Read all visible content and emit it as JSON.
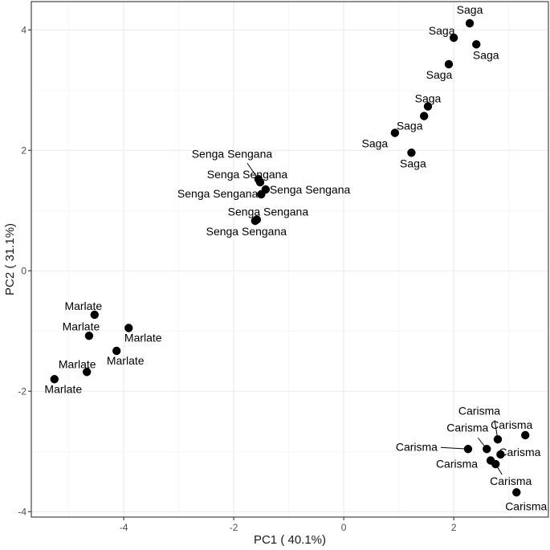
{
  "chart_data": {
    "type": "scatter",
    "title": "",
    "xlabel": "PC1 ( 40.1%)",
    "ylabel": "PC2 ( 31.1%)",
    "xlim": [
      -5.68,
      3.72
    ],
    "ylim": [
      -4.09,
      4.47
    ],
    "x_ticks": [
      -4,
      -2,
      0,
      2
    ],
    "y_ticks": [
      -4,
      -2,
      0,
      2,
      4
    ],
    "x_tick_labels": [
      "-4",
      "-2",
      "0",
      "2"
    ],
    "y_tick_labels": [
      "-4",
      "-2",
      "0",
      "2",
      "4"
    ],
    "grid": true,
    "legend": "none",
    "point_color": "#000000",
    "points": [
      {
        "label": "Saga",
        "x": 2.29,
        "y": 4.11
      },
      {
        "label": "Saga",
        "x": 2.0,
        "y": 3.87
      },
      {
        "label": "Saga",
        "x": 2.41,
        "y": 3.76
      },
      {
        "label": "Saga",
        "x": 1.91,
        "y": 3.43
      },
      {
        "label": "Saga",
        "x": 1.53,
        "y": 2.73
      },
      {
        "label": "Saga",
        "x": 1.46,
        "y": 2.57
      },
      {
        "label": "Saga",
        "x": 0.93,
        "y": 2.29
      },
      {
        "label": "Saga",
        "x": 1.23,
        "y": 1.96
      },
      {
        "label": "Senga Sengana",
        "x": -1.55,
        "y": 1.52
      },
      {
        "label": "Senga Sengana",
        "x": -1.52,
        "y": 1.47
      },
      {
        "label": "Senga Sengana",
        "x": -1.42,
        "y": 1.35
      },
      {
        "label": "Senga Sengana",
        "x": -1.5,
        "y": 1.27
      },
      {
        "label": "Senga Sengana",
        "x": -1.58,
        "y": 0.85
      },
      {
        "label": "Senga Sengana",
        "x": -1.61,
        "y": 0.83
      },
      {
        "label": "Marlate",
        "x": -4.53,
        "y": -0.73
      },
      {
        "label": "Marlate",
        "x": -4.63,
        "y": -1.08
      },
      {
        "label": "Marlate",
        "x": -3.91,
        "y": -0.95
      },
      {
        "label": "Marlate",
        "x": -4.13,
        "y": -1.33
      },
      {
        "label": "Marlate",
        "x": -4.67,
        "y": -1.68
      },
      {
        "label": "Marlate",
        "x": -5.26,
        "y": -1.8
      },
      {
        "label": "Carisma",
        "x": 3.3,
        "y": -2.73
      },
      {
        "label": "Carisma",
        "x": 2.8,
        "y": -2.8
      },
      {
        "label": "Carisma",
        "x": 2.26,
        "y": -2.96
      },
      {
        "label": "Carisma",
        "x": 2.6,
        "y": -2.96
      },
      {
        "label": "Carisma",
        "x": 2.85,
        "y": -3.05
      },
      {
        "label": "Carisma",
        "x": 2.67,
        "y": -3.15
      },
      {
        "label": "Carisma",
        "x": 2.76,
        "y": -3.21
      },
      {
        "label": "Carisma",
        "x": 3.14,
        "y": -3.68
      }
    ]
  }
}
